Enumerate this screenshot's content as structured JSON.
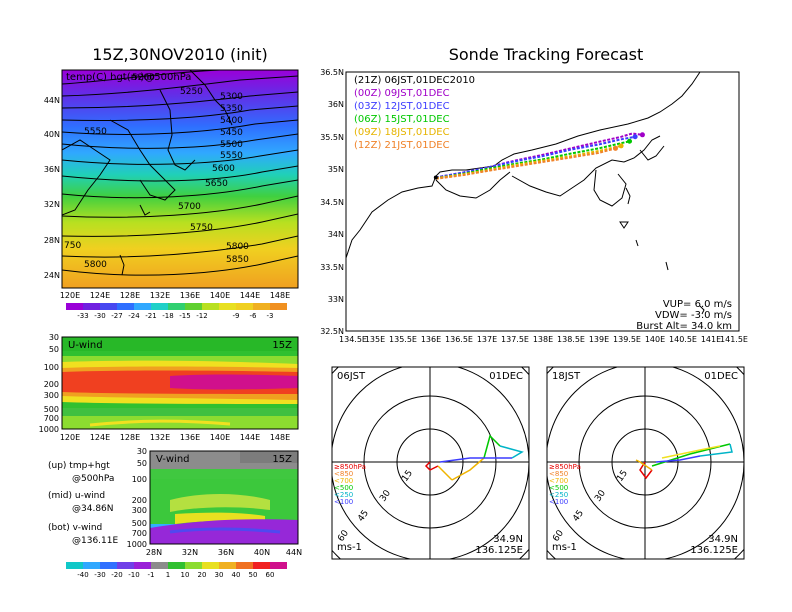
{
  "main": {
    "title": "15Z,30NOV2010 (init)",
    "label": "temp(C) hgt(m)@500hPa",
    "lon_ticks": [
      "120E",
      "124E",
      "128E",
      "132E",
      "136E",
      "140E",
      "144E",
      "148E"
    ],
    "lat_ticks": [
      "44N",
      "40N",
      "36N",
      "32N",
      "28N",
      "24N"
    ],
    "contour_labels": [
      "5200",
      "5250",
      "5300",
      "5350",
      "5400",
      "5450",
      "5500",
      "5550",
      "5550",
      "5600",
      "5650",
      "5700",
      "5750",
      "5800",
      "5800",
      "5850",
      "750"
    ],
    "colorbar": [
      "-33",
      "-30",
      "-27",
      "-24",
      "-21",
      "-18",
      "-15",
      "-12",
      "-9",
      "-6",
      "-3"
    ]
  },
  "uwind": {
    "label": "U-wind",
    "time": "15Z",
    "p_ticks": [
      "30",
      "50",
      "100",
      "200",
      "300",
      "500",
      "700",
      "1000"
    ],
    "lon_ticks": [
      "120E",
      "124E",
      "128E",
      "132E",
      "136E",
      "140E",
      "144E",
      "148E"
    ]
  },
  "vwind": {
    "label": "V-wind",
    "time": "15Z",
    "p_ticks": [
      "30",
      "50",
      "100",
      "200",
      "300",
      "500",
      "700",
      "1000"
    ],
    "lat_ticks": [
      "28N",
      "32N",
      "36N",
      "40N",
      "44N"
    ]
  },
  "legend": {
    "up1": "(up) tmp+hgt",
    "up2": "@500hPa",
    "mid1": "(mid) u-wind",
    "mid2": "@34.86N",
    "bot1": "(bot) v-wind",
    "bot2": "@136.11E"
  },
  "windbar": [
    "-40",
    "-30",
    "-20",
    "-10",
    "-1",
    "1",
    "10",
    "20",
    "30",
    "40",
    "50",
    "60"
  ],
  "track": {
    "title": "Sonde Tracking Forecast",
    "lines": [
      {
        "text": "(21Z)  06JST,01DEC2010",
        "color": "#000000"
      },
      {
        "text": "(00Z)  09JST,01DEC",
        "color": "#a000c8"
      },
      {
        "text": "(03Z)  12JST,01DEC",
        "color": "#3c3cff"
      },
      {
        "text": "(06Z)  15JST,01DEC",
        "color": "#00c800"
      },
      {
        "text": "(09Z)  18JST,01DEC",
        "color": "#e6b400"
      },
      {
        "text": "(12Z)  21JST,01DEC",
        "color": "#f08228"
      }
    ],
    "lat_ticks": [
      "36.5N",
      "36N",
      "35.5N",
      "35N",
      "34.5N",
      "34N",
      "33.5N",
      "33N",
      "32.5N"
    ],
    "lon_ticks": [
      "134.5E",
      "135E",
      "135.5E",
      "136E",
      "136.5E",
      "137E",
      "137.5E",
      "138E",
      "138.5E",
      "139E",
      "139.5E",
      "140E",
      "140.5E",
      "141E",
      "141.5E"
    ],
    "vup": "VUP=  6.0  m/s",
    "vdw": "VDW=  -3.0  m/s",
    "burst": "Burst Alt=  34.0  km"
  },
  "polar_left": {
    "time": "06JST",
    "date": "01DEC",
    "unit": "ms-1",
    "lat": "34.9N",
    "lon": "136.125E",
    "ring_labels": [
      "15",
      "30",
      "45",
      "60"
    ],
    "levels": [
      "≥850hPa",
      "<850",
      "<700",
      "<500",
      "<250",
      "<100"
    ]
  },
  "polar_right": {
    "time": "18JST",
    "date": "01DEC",
    "unit": "ms-1",
    "lat": "34.9N",
    "lon": "136.125E",
    "ring_labels": [
      "15",
      "30",
      "45",
      "60"
    ],
    "levels": [
      "≥850hPa",
      "<850",
      "<700",
      "<500",
      "<250",
      "<100"
    ]
  },
  "chart_data": [
    {
      "type": "heatmap",
      "title": "15Z,30NOV2010 (init)",
      "subtitle": "temp(C) hgt(m)@500hPa",
      "x_ticks": [
        "120E",
        "124E",
        "128E",
        "132E",
        "136E",
        "140E",
        "144E",
        "148E"
      ],
      "y_ticks": [
        "24N",
        "28N",
        "32N",
        "36N",
        "40N",
        "44N"
      ],
      "contours_m": [
        5200,
        5250,
        5300,
        5350,
        5400,
        5450,
        5500,
        5550,
        5600,
        5650,
        5700,
        5750,
        5800,
        5850
      ],
      "colorbar_C": [
        -33,
        -30,
        -27,
        -24,
        -21,
        -18,
        -15,
        -12,
        -9,
        -6,
        -3
      ]
    },
    {
      "type": "heatmap",
      "title": "U-wind",
      "x_ticks": [
        "120E",
        "124E",
        "128E",
        "132E",
        "136E",
        "140E",
        "144E",
        "148E"
      ],
      "y_ticks_hPa": [
        30,
        50,
        100,
        200,
        300,
        500,
        700,
        1000
      ]
    },
    {
      "type": "heatmap",
      "title": "V-wind",
      "x_ticks": [
        "28N",
        "32N",
        "36N",
        "40N",
        "44N"
      ],
      "y_ticks_hPa": [
        30,
        50,
        100,
        200,
        300,
        500,
        700,
        1000
      ],
      "colorbar_ms": [
        -40,
        -30,
        -20,
        -10,
        -1,
        1,
        10,
        20,
        30,
        40,
        50,
        60
      ]
    },
    {
      "type": "line",
      "title": "Sonde Tracking Forecast",
      "xlim": [
        134.5,
        141.5
      ],
      "ylim": [
        32.5,
        36.5
      ],
      "series": [
        {
          "name": "(00Z) 09JST,01DEC",
          "x": [
            136.1,
            136.6,
            137.0,
            137.5,
            138.0,
            138.5,
            139.0,
            139.4,
            139.6,
            139.78
          ],
          "y": [
            34.87,
            34.95,
            35.02,
            35.13,
            35.22,
            35.32,
            35.42,
            35.5,
            35.55,
            35.53
          ]
        },
        {
          "name": "(03Z) 12JST,01DEC",
          "x": [
            136.1,
            136.6,
            137.0,
            137.5,
            138.0,
            138.5,
            139.0,
            139.4,
            139.65
          ],
          "y": [
            34.87,
            34.95,
            35.02,
            35.12,
            35.2,
            35.3,
            35.38,
            35.46,
            35.5
          ]
        },
        {
          "name": "(06Z) 15JST,01DEC",
          "x": [
            136.1,
            136.6,
            137.0,
            137.5,
            138.0,
            138.5,
            139.0,
            139.4,
            139.55
          ],
          "y": [
            34.86,
            34.93,
            35.0,
            35.08,
            35.15,
            35.24,
            35.32,
            35.4,
            35.43
          ]
        },
        {
          "name": "(09Z) 18JST,01DEC",
          "x": [
            136.1,
            136.6,
            137.0,
            137.5,
            138.0,
            138.5,
            139.0,
            139.4
          ],
          "y": [
            34.86,
            34.92,
            34.98,
            35.06,
            35.13,
            35.2,
            35.28,
            35.36
          ]
        },
        {
          "name": "(12Z) 21JST,01DEC",
          "x": [
            136.1,
            136.6,
            137.0,
            137.5,
            138.0,
            138.5,
            139.0,
            139.3
          ],
          "y": [
            34.85,
            34.91,
            34.97,
            35.04,
            35.11,
            35.18,
            35.25,
            35.32
          ]
        }
      ],
      "annotations": [
        "VUP=  6.0  m/s",
        "VDW=  -3.0  m/s",
        "Burst Alt=  34.0  km"
      ]
    }
  ]
}
